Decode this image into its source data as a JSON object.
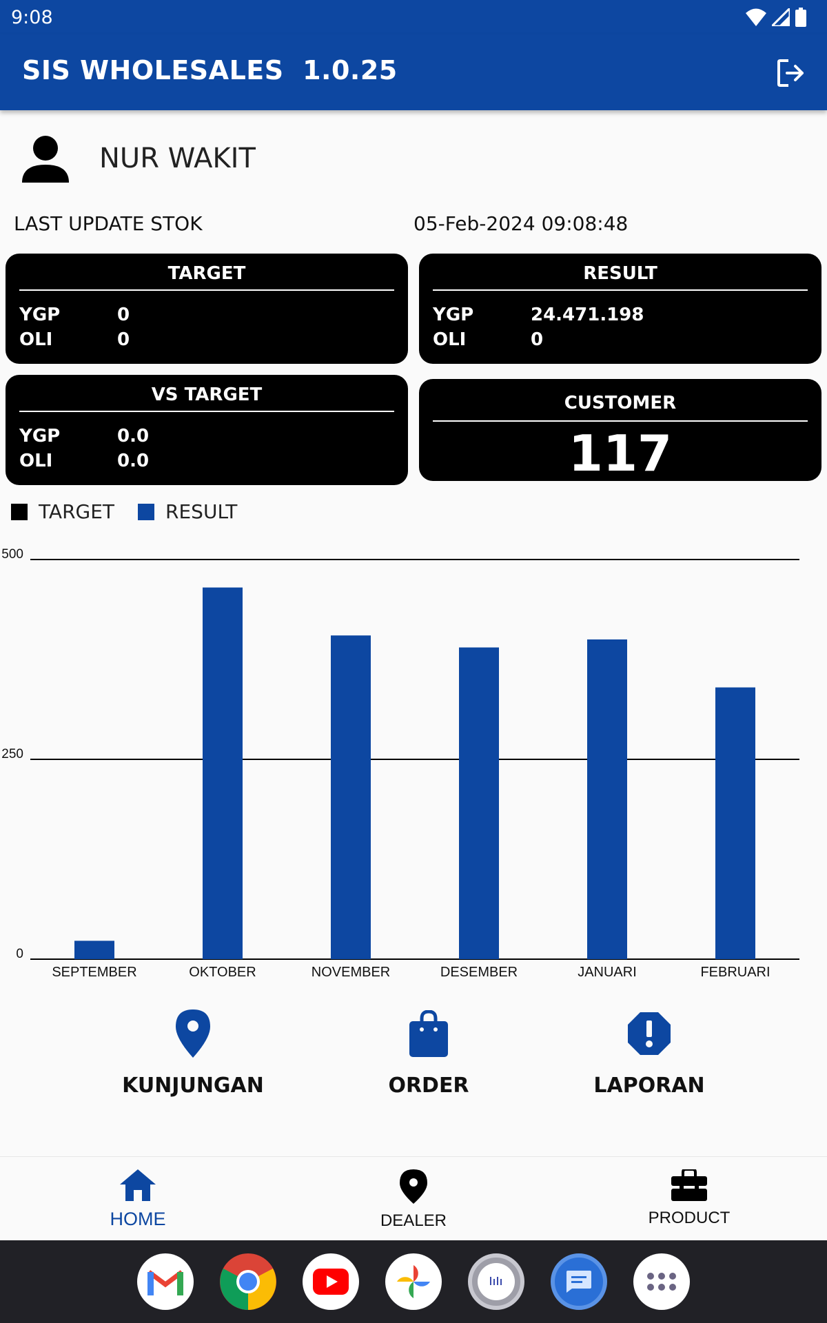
{
  "status_bar": {
    "time": "9:08"
  },
  "app_bar": {
    "title": "SIS WHOLESALES  1.0.25"
  },
  "user": {
    "name": "NUR WAKIT"
  },
  "stok": {
    "label": "LAST UPDATE STOK",
    "value": "05-Feb-2024 09:08:48"
  },
  "target_card": {
    "title": "TARGET",
    "rows": [
      {
        "key": "YGP",
        "value": "0"
      },
      {
        "key": "OLI",
        "value": "0"
      }
    ]
  },
  "result_card": {
    "title": "RESULT",
    "rows": [
      {
        "key": "YGP",
        "value": "24.471.198"
      },
      {
        "key": "OLI",
        "value": "0"
      }
    ]
  },
  "vs_target_card": {
    "title": "VS TARGET",
    "rows": [
      {
        "key": "YGP",
        "value": "0.0"
      },
      {
        "key": "OLI",
        "value": "0.0"
      }
    ]
  },
  "customer_card": {
    "title": "CUSTOMER",
    "value": "117"
  },
  "legend": [
    {
      "label": "TARGET",
      "color": "#000000"
    },
    {
      "label": "RESULT",
      "color": "#0d47a1"
    }
  ],
  "chart_data": {
    "type": "bar",
    "categories": [
      "SEPTEMBER",
      "OKTOBER",
      "NOVEMBER",
      "DESEMBER",
      "JANUARI",
      "FEBRUARI"
    ],
    "series": [
      {
        "name": "TARGET",
        "color": "#000000",
        "values": [
          0,
          0,
          0,
          0,
          0,
          0
        ]
      },
      {
        "name": "RESULT",
        "color": "#0d47a1",
        "values": [
          23,
          465,
          405,
          390,
          400,
          340
        ]
      }
    ],
    "y_ticks": [
      "0",
      "250",
      "500"
    ],
    "ylim": [
      0,
      500
    ],
    "grid": true,
    "legend_position": "top-left"
  },
  "menu": [
    {
      "label": "KUNJUNGAN",
      "icon": "location-pin-icon"
    },
    {
      "label": "ORDER",
      "icon": "shopping-bag-icon"
    },
    {
      "label": "LAPORAN",
      "icon": "alert-octagon-icon"
    }
  ],
  "bottom_nav": [
    {
      "label": "HOME",
      "icon": "home-icon",
      "active": true
    },
    {
      "label": "DEALER",
      "icon": "location-pin-icon",
      "active": false
    },
    {
      "label": "PRODUCT",
      "icon": "toolbox-icon",
      "active": false
    }
  ],
  "dock_apps": [
    "gmail-icon",
    "chrome-icon",
    "youtube-icon",
    "photos-icon",
    "scanner-app-icon",
    "messages-icon",
    "app-drawer-icon"
  ],
  "colors": {
    "primary": "#0d47a1",
    "card": "#000000",
    "background": "#fafafa"
  }
}
